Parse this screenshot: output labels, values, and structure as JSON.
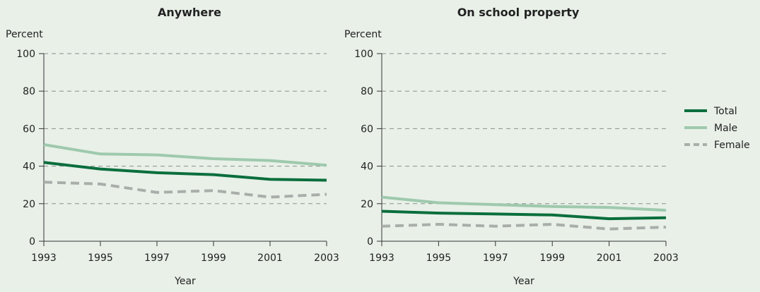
{
  "colors": {
    "background": "#e8f0e8",
    "total": "#0a6e3c",
    "male": "#9ec9ad",
    "female": "#a9aeaa",
    "grid": "#8a8f8b",
    "axis": "#333333"
  },
  "legend": {
    "placement": "right",
    "items": [
      {
        "label": "Total",
        "series": "total"
      },
      {
        "label": "Male",
        "series": "male"
      },
      {
        "label": "Female",
        "series": "female"
      }
    ]
  },
  "chart_data": [
    {
      "type": "line",
      "title": "Anywhere",
      "ylabel": "Percent",
      "xlabel": "Year",
      "x": [
        1993,
        1995,
        1997,
        1999,
        2001,
        2003
      ],
      "xlim": [
        1993,
        2003
      ],
      "ylim": [
        0,
        100
      ],
      "yticks": [
        0,
        20,
        40,
        60,
        80,
        100
      ],
      "grid": true,
      "series": [
        {
          "name": "Total",
          "key": "total",
          "style": "solid",
          "values": [
            42,
            38.5,
            36.5,
            35.5,
            33,
            32.5
          ]
        },
        {
          "name": "Male",
          "key": "male",
          "style": "solid",
          "values": [
            51.5,
            46.5,
            46,
            44,
            43,
            40.5
          ]
        },
        {
          "name": "Female",
          "key": "female",
          "style": "dashed",
          "values": [
            31.5,
            30.5,
            26,
            27,
            23.5,
            25
          ]
        }
      ]
    },
    {
      "type": "line",
      "title": "On school property",
      "ylabel": "Percent",
      "xlabel": "Year",
      "x": [
        1993,
        1995,
        1997,
        1999,
        2001,
        2003
      ],
      "xlim": [
        1993,
        2003
      ],
      "ylim": [
        0,
        100
      ],
      "yticks": [
        0,
        20,
        40,
        60,
        80,
        100
      ],
      "grid": true,
      "series": [
        {
          "name": "Total",
          "key": "total",
          "style": "solid",
          "values": [
            16,
            15,
            14.5,
            14,
            12,
            12.5
          ]
        },
        {
          "name": "Male",
          "key": "male",
          "style": "solid",
          "values": [
            23.5,
            20.5,
            19.5,
            18.5,
            18,
            16.5
          ]
        },
        {
          "name": "Female",
          "key": "female",
          "style": "dashed",
          "values": [
            8,
            9,
            8,
            9,
            6.5,
            7.5
          ]
        }
      ]
    }
  ]
}
